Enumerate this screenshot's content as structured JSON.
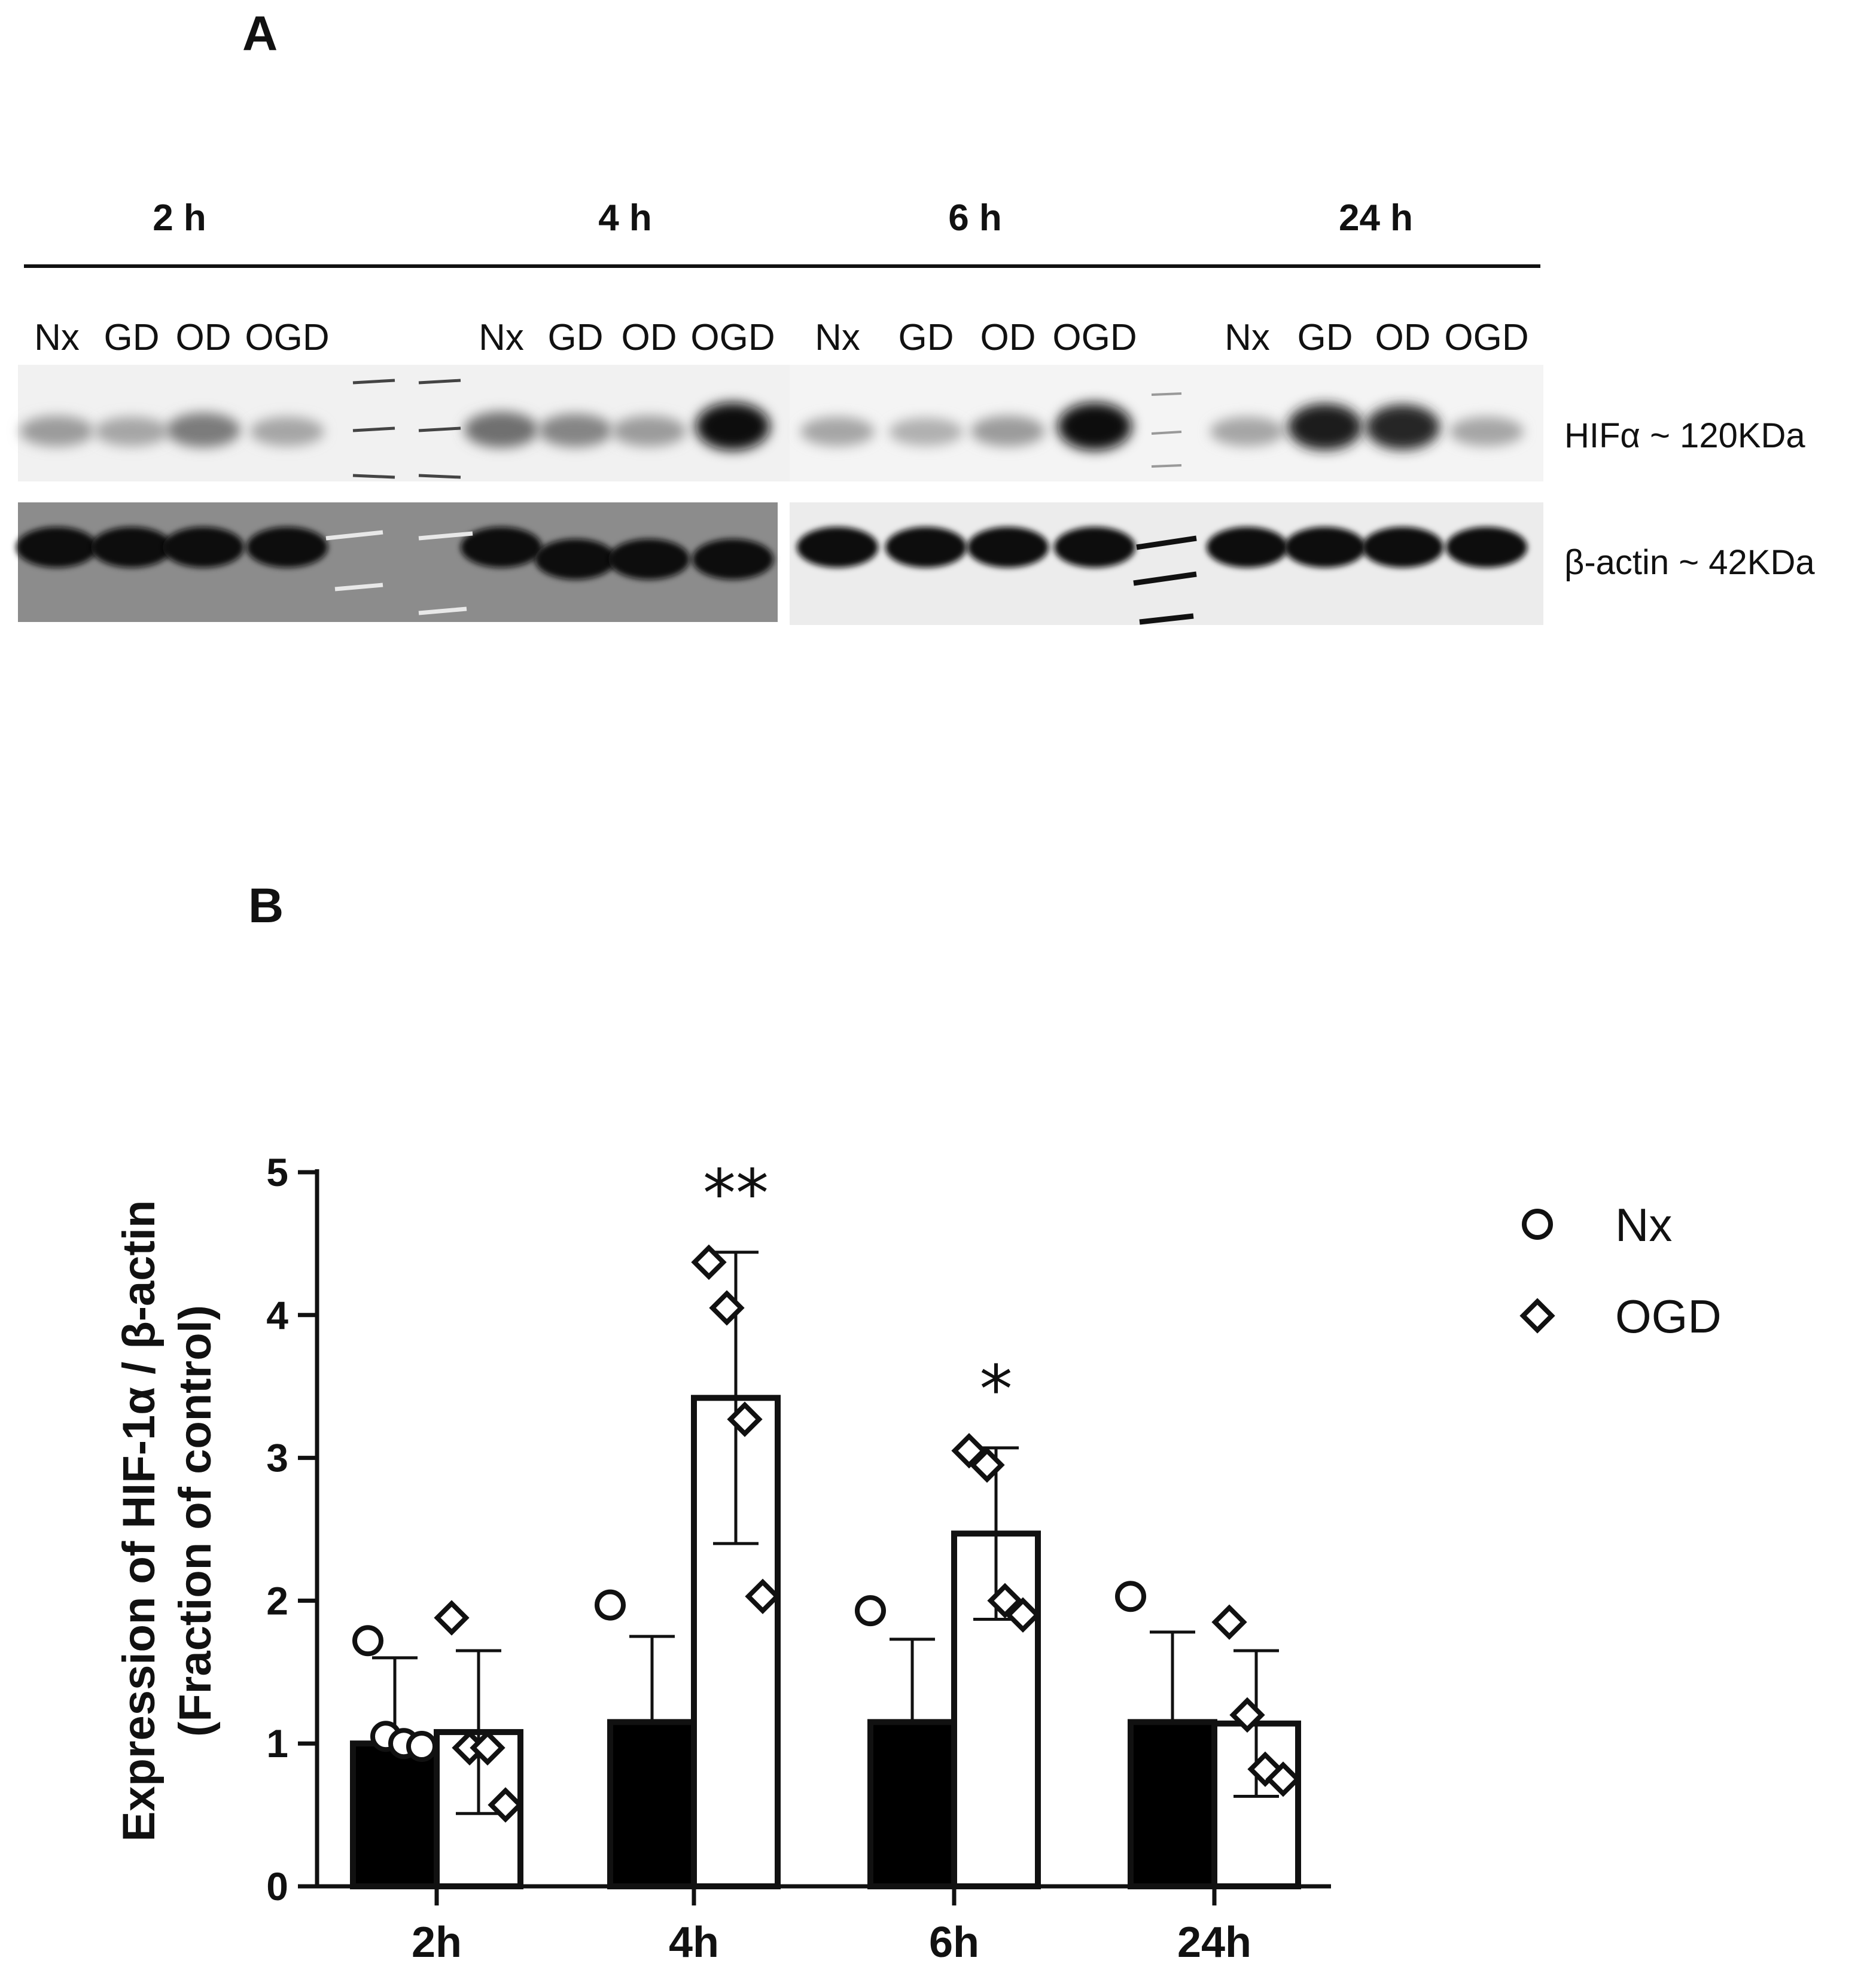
{
  "panel_a": {
    "label": "A",
    "time_groups": [
      {
        "label": "2 h",
        "lanes": [
          "Nx",
          "GD",
          "OD",
          "OGD"
        ],
        "hif_intensity": [
          0.35,
          0.3,
          0.5,
          0.3
        ]
      },
      {
        "label": "4 h",
        "lanes": [
          "Nx",
          "GD",
          "OD",
          "OGD"
        ],
        "hif_intensity": [
          0.55,
          0.45,
          0.35,
          1.0
        ]
      },
      {
        "label": "6 h",
        "lanes": [
          "Nx",
          "GD",
          "OD",
          "OGD"
        ],
        "hif_intensity": [
          0.3,
          0.25,
          0.35,
          1.0
        ]
      },
      {
        "label": "24 h",
        "lanes": [
          "Nx",
          "GD",
          "OD",
          "OGD"
        ],
        "hif_intensity": [
          0.3,
          0.95,
          0.9,
          0.3
        ]
      }
    ],
    "band_labels": {
      "hif": "HIFα ~ 120KDa",
      "actin": "β-actin ~ 42KDa"
    }
  },
  "panel_b": {
    "label": "B"
  },
  "chart_data": {
    "type": "bar",
    "categories": [
      "2h",
      "4h",
      "6h",
      "24h"
    ],
    "ylabel_line1": "Expression of HIF-1α / β-actin",
    "ylabel_line2": "(Fraction of control)",
    "ylim": [
      0,
      5
    ],
    "yticks": [
      0,
      1,
      2,
      3,
      4,
      5
    ],
    "series": [
      {
        "name": "Nx",
        "marker": "circle",
        "fill": "#000000",
        "values": [
          1.0,
          1.15,
          1.15,
          1.15
        ],
        "sd": [
          0.6,
          0.6,
          0.58,
          0.63
        ],
        "points": [
          [
            1.72,
            1.05,
            1.0,
            0.98
          ],
          [
            1.97
          ],
          [
            1.93
          ],
          [
            2.03
          ]
        ]
      },
      {
        "name": "OGD",
        "marker": "diamond",
        "fill": "#ffffff",
        "values": [
          1.08,
          3.42,
          2.47,
          1.14
        ],
        "sd": [
          0.57,
          1.02,
          0.6,
          0.51
        ],
        "points": [
          [
            1.88,
            0.97,
            0.97,
            0.57
          ],
          [
            4.37,
            4.05,
            3.27,
            2.03
          ],
          [
            3.05,
            2.95,
            2.0,
            1.9
          ],
          [
            1.85,
            1.2,
            0.82,
            0.75
          ]
        ]
      }
    ],
    "significance": [
      {
        "category": "4h",
        "series": "OGD",
        "text": "**"
      },
      {
        "category": "6h",
        "series": "OGD",
        "text": "*"
      }
    ],
    "legend": {
      "position": "top-right",
      "entries": [
        "Nx",
        "OGD"
      ]
    },
    "grid": false
  }
}
